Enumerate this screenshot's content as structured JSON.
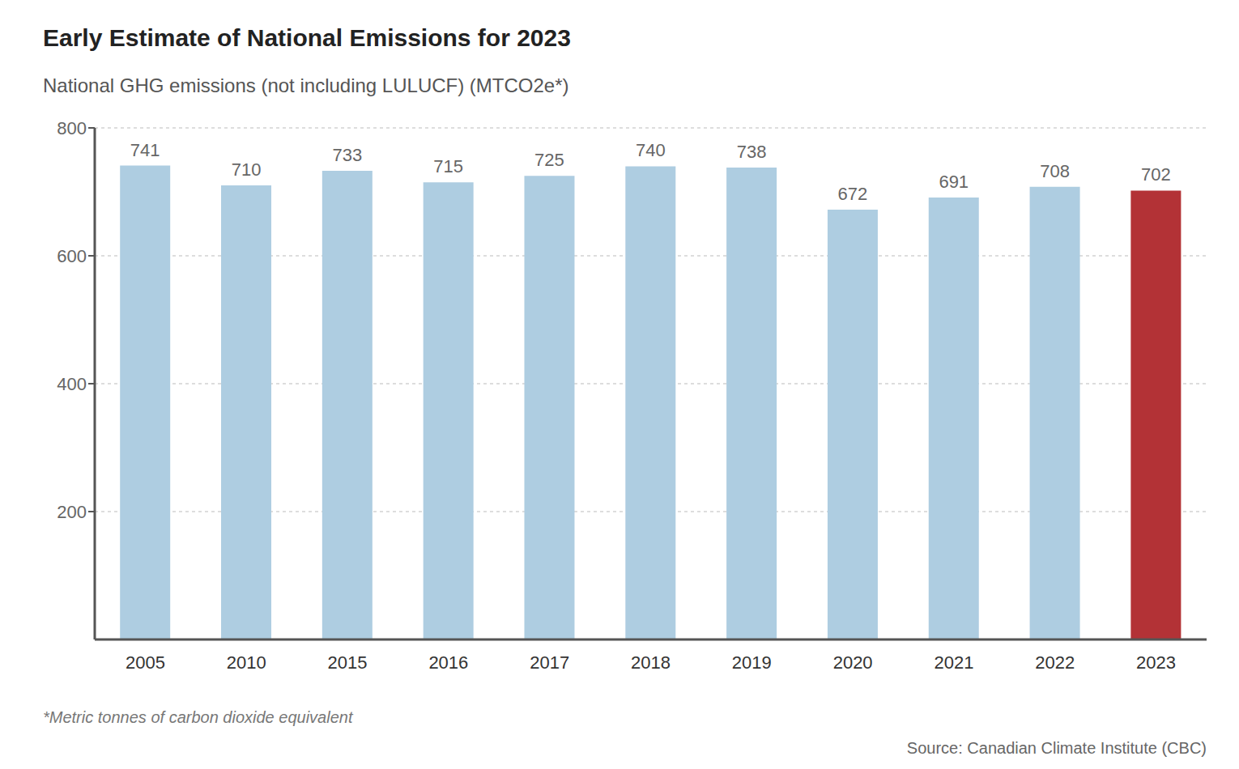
{
  "chart_data": {
    "type": "bar",
    "title": "Early Estimate of National Emissions for 2023",
    "subtitle": "National GHG emissions (not including LULUCF) (MTCO2e*)",
    "footnote": "*Metric tonnes of carbon dioxide equivalent",
    "source": "Source: Canadian Climate Institute (CBC)",
    "categories": [
      "2005",
      "2010",
      "2015",
      "2016",
      "2017",
      "2018",
      "2019",
      "2020",
      "2021",
      "2022",
      "2023"
    ],
    "values": [
      741,
      710,
      733,
      715,
      725,
      740,
      738,
      672,
      691,
      708,
      702
    ],
    "colors": [
      "#aecde1",
      "#aecde1",
      "#aecde1",
      "#aecde1",
      "#aecde1",
      "#aecde1",
      "#aecde1",
      "#aecde1",
      "#aecde1",
      "#aecde1",
      "#b33236"
    ],
    "ylim": [
      0,
      800
    ],
    "yticks": [
      200,
      400,
      600,
      800
    ],
    "grid": true,
    "data_labels": true
  }
}
